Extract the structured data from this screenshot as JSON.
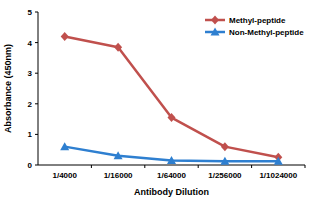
{
  "chart_data": {
    "type": "line",
    "x_label": "Antibody Dilution",
    "y_label": "Absorbance (450nm)",
    "categories": [
      "1/4000",
      "1/16000",
      "1/64000",
      "1/256000",
      "1/1024000"
    ],
    "series": [
      {
        "name": "Methyl-peptide",
        "color": "#c0504d",
        "marker": "diamond",
        "values": [
          4.2,
          3.85,
          1.55,
          0.6,
          0.25
        ]
      },
      {
        "name": "Non-Methyl-peptide",
        "color": "#2e7fd0",
        "marker": "triangle",
        "values": [
          0.6,
          0.3,
          0.15,
          0.12,
          0.12
        ]
      }
    ],
    "ylim": [
      0,
      5
    ],
    "yticks": [
      0,
      1,
      2,
      3,
      4,
      5
    ],
    "grid": false,
    "legend": "upper right"
  }
}
